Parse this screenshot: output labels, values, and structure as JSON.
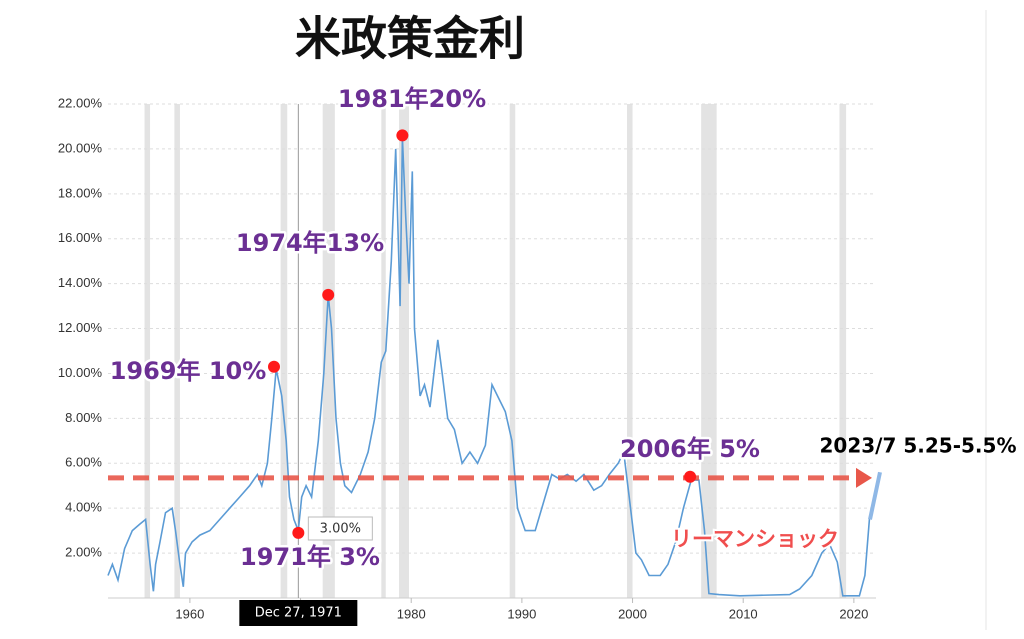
{
  "chart_data": {
    "type": "line",
    "title": "米政策金利",
    "x": [
      1952.6,
      1953.0,
      1953.5,
      1954.1,
      1954.8,
      1955.5,
      1956.0,
      1956.4,
      1956.7,
      1956.9,
      1957.3,
      1957.8,
      1958.4,
      1958.7,
      1959.1,
      1959.4,
      1959.6,
      1960.2,
      1960.9,
      1961.8,
      1962.7,
      1963.6,
      1964.5,
      1965.4,
      1966.1,
      1966.5,
      1967.0,
      1967.4,
      1967.8,
      1968.3,
      1968.7,
      1969.0,
      1969.4,
      1969.8,
      1970.1,
      1970.5,
      1971.0,
      1971.6,
      1972.1,
      1972.5,
      1972.8,
      1973.2,
      1973.6,
      1974.0,
      1974.6,
      1975.4,
      1976.1,
      1976.7,
      1977.3,
      1977.7,
      1978.2,
      1978.6,
      1979.0,
      1979.2,
      1979.5,
      1979.8,
      1980.1,
      1980.3,
      1980.8,
      1981.2,
      1981.7,
      1982.4,
      1982.8,
      1983.3,
      1983.9,
      1984.6,
      1985.3,
      1986.0,
      1986.7,
      1987.3,
      1987.8,
      1988.5,
      1989.1,
      1989.6,
      1990.3,
      1991.2,
      1992.1,
      1992.7,
      1993.4,
      1994.1,
      1994.9,
      1995.6,
      1996.5,
      1997.2,
      1997.9,
      1998.7,
      1999.2,
      1999.7,
      2000.3,
      2000.8,
      2001.5,
      2002.5,
      2003.2,
      2003.9,
      2004.6,
      2005.3,
      2006.0,
      2006.5,
      2006.9,
      2007.8,
      2009.7,
      2011.5,
      2014.2,
      2015.1,
      2016.2,
      2017.1,
      2017.8,
      2018.5,
      2019.0,
      2020.5,
      2021.0,
      2021.4,
      2021.9
    ],
    "values": [
      1.0,
      1.5,
      0.8,
      2.2,
      3.0,
      3.3,
      3.5,
      1.5,
      0.3,
      1.5,
      2.5,
      3.8,
      4.0,
      3.0,
      1.5,
      0.5,
      2.0,
      2.5,
      2.8,
      3.0,
      3.5,
      4.0,
      4.5,
      5.0,
      5.5,
      5.0,
      6.0,
      8.0,
      10.2,
      9.0,
      7.0,
      4.5,
      3.5,
      3.0,
      4.5,
      5.0,
      4.5,
      7.0,
      10.0,
      13.5,
      12.0,
      8.0,
      6.0,
      5.0,
      4.7,
      5.5,
      6.5,
      8.0,
      10.5,
      11.0,
      15.0,
      20.0,
      13.0,
      20.5,
      17.0,
      14.0,
      19.0,
      12.0,
      9.0,
      9.5,
      8.5,
      11.5,
      10.0,
      8.0,
      7.5,
      6.0,
      6.5,
      6.0,
      6.8,
      9.5,
      9.0,
      8.3,
      7.0,
      4.0,
      3.0,
      3.0,
      4.5,
      5.5,
      5.3,
      5.5,
      5.2,
      5.5,
      4.8,
      5.0,
      5.5,
      6.0,
      6.5,
      4.5,
      2.0,
      1.7,
      1.0,
      1.0,
      1.5,
      2.5,
      4.0,
      5.25,
      5.25,
      3.0,
      0.2,
      0.15,
      0.1,
      0.12,
      0.15,
      0.4,
      1.0,
      2.0,
      2.4,
      1.6,
      0.1,
      0.1,
      1.0,
      3.5,
      4.5
    ],
    "color": "#5b9bd5",
    "xlim": [
      1952.6,
      2022
    ],
    "xticks": [
      1960,
      1970,
      1980,
      1990,
      2000,
      2010,
      2020
    ],
    "ylim": [
      0,
      22
    ],
    "yticks": [
      {
        "value": 2,
        "label": "2.00%"
      },
      {
        "value": 4,
        "label": "4.00%"
      },
      {
        "value": 6,
        "label": "6.00%"
      },
      {
        "value": 8,
        "label": "8.00%"
      },
      {
        "value": 10,
        "label": "10.00%"
      },
      {
        "value": 12,
        "label": "12.00%"
      },
      {
        "value": 14,
        "label": "14.00%"
      },
      {
        "value": 16,
        "label": "16.00%"
      },
      {
        "value": 18,
        "label": "18.00%"
      },
      {
        "value": 20,
        "label": "20.00%"
      },
      {
        "value": 22,
        "label": "22.00%"
      }
    ],
    "grid": true,
    "recessions": [
      [
        1955.9,
        1956.4
      ],
      [
        1958.6,
        1959.1
      ],
      [
        1968.2,
        1968.8
      ],
      [
        1972.0,
        1973.1
      ],
      [
        1977.3,
        1977.7
      ],
      [
        1978.9,
        1979.8
      ],
      [
        1988.9,
        1989.4
      ],
      [
        1999.5,
        2000.0
      ],
      [
        2006.2,
        2007.6
      ],
      [
        2018.7,
        2019.3
      ]
    ],
    "annotations": [
      {
        "text": "1981年20%",
        "x": 1979.2,
        "y": 20.6
      },
      {
        "text": "1974年13%",
        "x": 1972.5,
        "y": 13.5
      },
      {
        "text": "1969年 10%",
        "x": 1967.6,
        "y": 10.3
      },
      {
        "text": "1971年 3%",
        "x": 1969.8,
        "y": 2.9
      },
      {
        "text": "2006年 5%",
        "x": 2005.2,
        "y": 5.4
      }
    ],
    "notes": [
      "リーマンショック",
      "2023/7 5.25-5.5%"
    ],
    "reference_value": 5.35,
    "cursor": {
      "x": 1969.8,
      "value": 3,
      "value_label": "3.00%",
      "date_label": "Dec 27, 1971"
    }
  }
}
